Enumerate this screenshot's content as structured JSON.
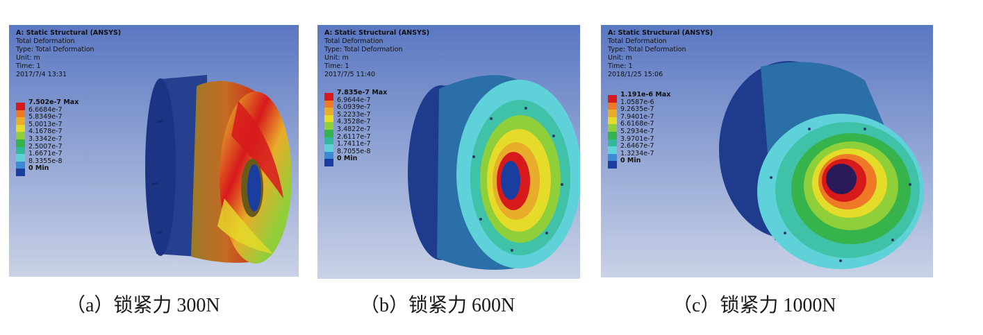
{
  "panels": [
    {
      "header": {
        "title": "A: Static Structural (ANSYS)",
        "lines": [
          "Total Deformation",
          "Type: Total Deformation",
          "Unit: m",
          "Time: 1",
          "2017/7/4 13:31"
        ]
      },
      "legend": [
        "7.502e-7 Max",
        "6.6684e-7",
        "5.8349e-7",
        "5.0013e-7",
        "4.1678e-7",
        "3.3342e-7",
        "2.5007e-7",
        "1.6671e-7",
        "8.3355e-8",
        "0 Min"
      ],
      "caption": "（a）锁紧力 300N"
    },
    {
      "header": {
        "title": "A: Static Structural (ANSYS)",
        "lines": [
          "Total Deformation",
          "Type: Total Deformation",
          "Unit: m",
          "Time: 1",
          "2017/7/5 11:40"
        ]
      },
      "legend": [
        "7.835e-7 Max",
        "6.9644e-7",
        "6.0939e-7",
        "5.2233e-7",
        "4.3528e-7",
        "3.4822e-7",
        "2.6117e-7",
        "1.7411e-7",
        "8.7055e-8",
        "0 Min"
      ],
      "caption": "（b）锁紧力 600N"
    },
    {
      "header": {
        "title": "A: Static Structural (ANSYS)",
        "lines": [
          "Total Deformation",
          "Type: Total Deformation",
          "Unit: m",
          "Time: 1",
          "2018/1/25 15:06"
        ]
      },
      "legend": [
        "1.191e-6 Max",
        "1.0587e-6",
        "9.2635e-7",
        "7.9401e-7",
        "6.6168e-7",
        "5.2934e-7",
        "3.9701e-7",
        "2.6467e-7",
        "1.3234e-7",
        "0 Min"
      ],
      "caption": "（c）锁紧力 1000N"
    }
  ],
  "colors": {
    "scale": [
      "#d7191c",
      "#ee7a27",
      "#e8ad2a",
      "#e5dc2a",
      "#8fcf3a",
      "#36b34a",
      "#32b99a",
      "#5fd1d9",
      "#3a8ad6",
      "#1a3da0"
    ],
    "background_top": "#5a77c2",
    "background_bottom": "#c9d2e6"
  }
}
